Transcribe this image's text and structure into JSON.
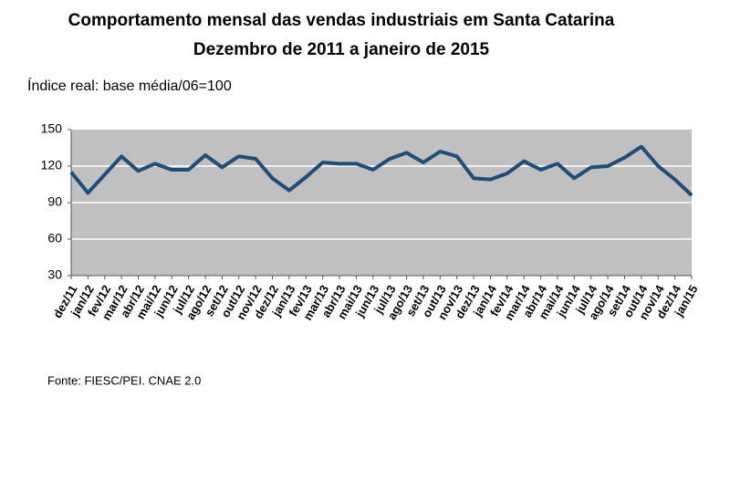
{
  "chart_data": {
    "type": "line",
    "title": [
      "Comportamento mensal das vendas industriais em Santa Catarina",
      "Dezembro de 2011 a janeiro de 2015"
    ],
    "ylabel": "Índice real: base média/06=100",
    "source": "Fonte: FIESC/PEI. CNAE 2.0",
    "categories": [
      "dez/11",
      "jan/12",
      "fev/12",
      "mar/12",
      "abr/12",
      "mai/12",
      "jun/12",
      "jul/12",
      "ago/12",
      "set/12",
      "out/12",
      "nov/12",
      "dez/12",
      "jan/13",
      "fev/13",
      "mar/13",
      "abr/13",
      "mai/13",
      "jun/13",
      "jul/13",
      "ago/13",
      "set/13",
      "out/13",
      "nov/13",
      "dez/13",
      "jan/14",
      "fev/14",
      "mar/14",
      "abr/14",
      "mai/14",
      "jun/14",
      "jul/14",
      "ago/14",
      "set/14",
      "out/14",
      "nov/14",
      "dez/14",
      "jan/15"
    ],
    "values": [
      115,
      98,
      113,
      128,
      116,
      122,
      117,
      117,
      129,
      119,
      128,
      126,
      110,
      100,
      111,
      123,
      122,
      122,
      117,
      126,
      131,
      123,
      132,
      128,
      110,
      109,
      114,
      124,
      117,
      122,
      110,
      119,
      120,
      127,
      136,
      120,
      109,
      96
    ],
    "color": "#1f4e79",
    "ylim": [
      30,
      150
    ],
    "yticks": [
      30,
      60,
      90,
      120,
      150
    ],
    "grid": true
  }
}
